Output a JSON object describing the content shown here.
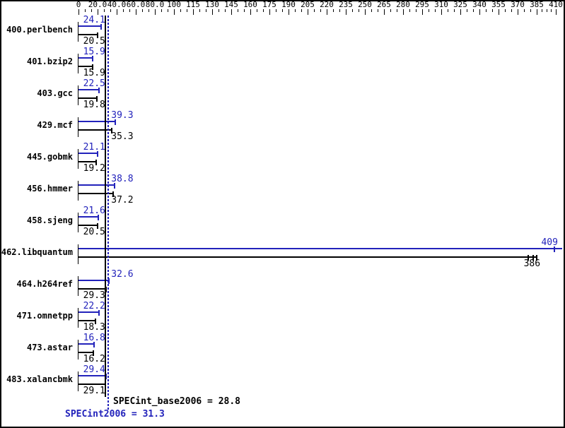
{
  "chart_data": {
    "type": "bar",
    "orientation": "horizontal",
    "title": "",
    "xlabel": "",
    "ylabel": "",
    "xlim": [
      0,
      410
    ],
    "grid": false,
    "colors": {
      "peak": "#2222bb",
      "base": "#000000"
    },
    "x_axis": {
      "tick_values": [
        0,
        20,
        40,
        60,
        80,
        100,
        115,
        130,
        145,
        160,
        175,
        190,
        205,
        220,
        235,
        250,
        265,
        280,
        295,
        310,
        325,
        340,
        355,
        370,
        385,
        410
      ],
      "tick_labels": [
        "0",
        "20.0",
        "40.0",
        "60.0",
        "80.0",
        "100",
        "115",
        "130",
        "145",
        "160",
        "175",
        "190",
        "205",
        "220",
        "235",
        "250",
        "265",
        "280",
        "295",
        "310",
        "325",
        "340",
        "355",
        "370",
        "385",
        "410"
      ],
      "minor_ticks_per_interval": 2
    },
    "categories": [
      "400.perlbench",
      "401.bzip2",
      "403.gcc",
      "429.mcf",
      "445.gobmk",
      "456.hmmer",
      "458.sjeng",
      "462.libquantum",
      "464.h264ref",
      "471.omnetpp",
      "473.astar",
      "483.xalancbmk"
    ],
    "series": [
      {
        "name": "peak",
        "color": "#2222bb",
        "values": [
          24.1,
          15.9,
          22.5,
          39.3,
          21.1,
          38.8,
          21.6,
          409,
          32.6,
          22.2,
          16.8,
          29.4
        ]
      },
      {
        "name": "base",
        "color": "#000000",
        "values": [
          20.5,
          15.9,
          19.8,
          35.3,
          19.2,
          37.2,
          20.5,
          386,
          29.3,
          18.3,
          16.2,
          29.1
        ]
      }
    ],
    "benchmarks": [
      {
        "name": "400.perlbench",
        "peak": 24.1,
        "base": 20.5
      },
      {
        "name": "401.bzip2",
        "peak": 15.9,
        "base": 15.9
      },
      {
        "name": "403.gcc",
        "peak": 22.5,
        "base": 19.8
      },
      {
        "name": "429.mcf",
        "peak": 39.3,
        "base": 35.3
      },
      {
        "name": "445.gobmk",
        "peak": 21.1,
        "base": 19.2
      },
      {
        "name": "456.hmmer",
        "peak": 38.8,
        "base": 37.2
      },
      {
        "name": "458.sjeng",
        "peak": 21.6,
        "base": 20.5
      },
      {
        "name": "462.libquantum",
        "peak": 409,
        "base": 386,
        "base_run_marks": [
          379,
          383
        ],
        "peak_overflow": true
      },
      {
        "name": "464.h264ref",
        "peak": 32.6,
        "base": 29.3
      },
      {
        "name": "471.omnetpp",
        "peak": 22.2,
        "base": 18.3
      },
      {
        "name": "473.astar",
        "peak": 16.8,
        "base": 16.2
      },
      {
        "name": "483.xalancbmk",
        "peak": 29.4,
        "base": 29.1
      }
    ],
    "reference_lines": [
      {
        "value": 28.8,
        "style": "solid",
        "color": "#000000",
        "label": "SPECint_base2006 = 28.8"
      },
      {
        "value": 31.3,
        "style": "dotted",
        "color": "#2222bb",
        "label": "SPECint2006 = 31.3"
      }
    ],
    "legend_position": "none"
  }
}
